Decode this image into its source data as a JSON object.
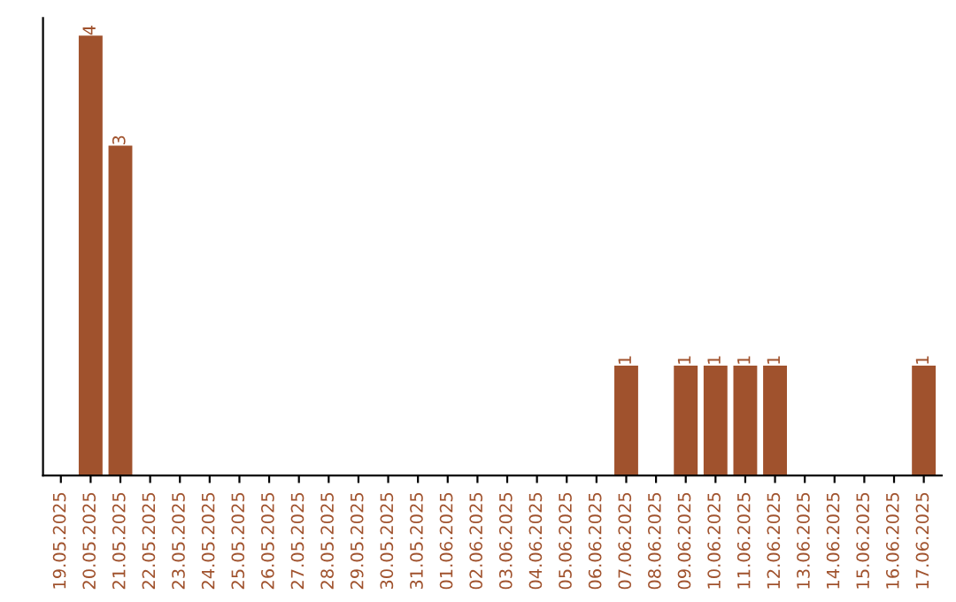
{
  "chart_data": {
    "type": "bar",
    "categories": [
      "19.05.2025",
      "20.05.2025",
      "21.05.2025",
      "22.05.2025",
      "23.05.2025",
      "24.05.2025",
      "25.05.2025",
      "26.05.2025",
      "27.05.2025",
      "28.05.2025",
      "29.05.2025",
      "30.05.2025",
      "31.05.2025",
      "01.06.2025",
      "02.06.2025",
      "03.06.2025",
      "04.06.2025",
      "05.06.2025",
      "06.06.2025",
      "07.06.2025",
      "08.06.2025",
      "09.06.2025",
      "10.06.2025",
      "11.06.2025",
      "12.06.2025",
      "13.06.2025",
      "14.06.2025",
      "15.06.2025",
      "16.06.2025",
      "17.06.2025"
    ],
    "values": [
      0,
      4,
      3,
      0,
      0,
      0,
      0,
      0,
      0,
      0,
      0,
      0,
      0,
      0,
      0,
      0,
      0,
      0,
      0,
      1,
      0,
      1,
      1,
      1,
      1,
      0,
      0,
      0,
      0,
      1
    ],
    "value_labels": [
      null,
      "4",
      "3",
      null,
      null,
      null,
      null,
      null,
      null,
      null,
      null,
      null,
      null,
      null,
      null,
      null,
      null,
      null,
      null,
      "1",
      null,
      "1",
      "1",
      "1",
      "1",
      null,
      null,
      null,
      null,
      "1"
    ],
    "color": "#a0522d",
    "tick_labels": "x",
    "grid": false,
    "legend": false
  }
}
